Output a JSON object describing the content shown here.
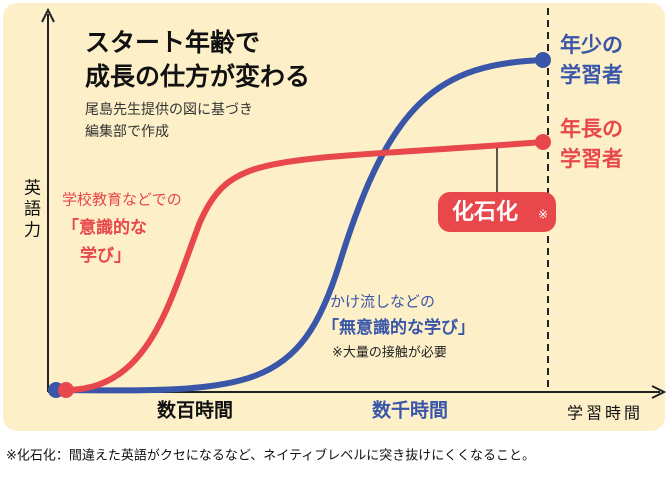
{
  "title": [
    "スタート年齢で",
    "成長の仕方が変わる"
  ],
  "source_note": [
    "尾島先生提供の図に基づき",
    "編集部で作成"
  ],
  "y_axis_label": "英語力",
  "x_axis": {
    "label": "学習時間",
    "marks": [
      "数百時間",
      "数千時間"
    ]
  },
  "young_learners": {
    "label": [
      "年少の",
      "学習者"
    ],
    "description": [
      "かけ流しなどの",
      "「無意識的な学び」",
      "※大量の接触が必要"
    ]
  },
  "older_learners": {
    "label": [
      "年長の",
      "学習者"
    ],
    "description": [
      "学校教育などでの",
      "「意識的な",
      "学び」"
    ]
  },
  "fossilization": {
    "label": "化石化",
    "mark": "※"
  },
  "footnote": "※化石化：間違えた英語がクセになるなど、ネイティブレベルに突き抜けにくくなること。"
}
